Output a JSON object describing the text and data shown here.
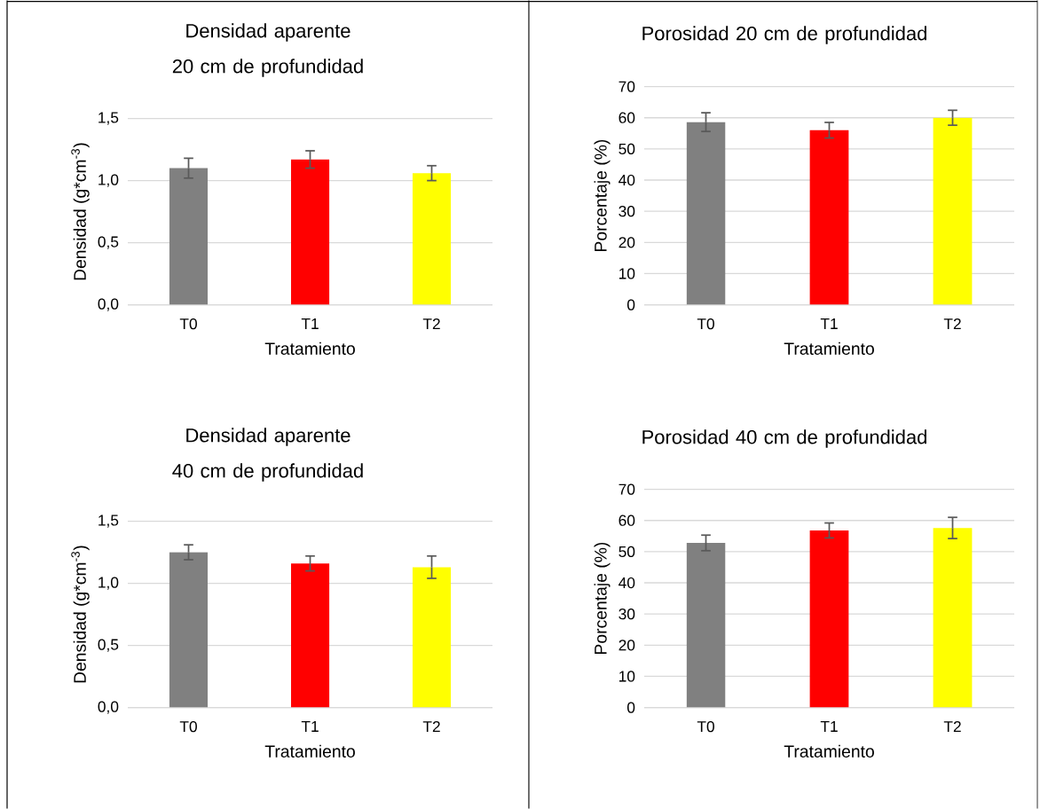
{
  "chart_data": [
    {
      "type": "bar",
      "title": "Densidad aparente 20 cm de profundidad",
      "xlabel": "Tratamiento",
      "ylabel": "Densidad (g*cm$^{-3}$)",
      "categories": [
        "T0",
        "T1",
        "T2"
      ],
      "values": [
        1.1,
        1.17,
        1.06
      ],
      "errors": [
        0.08,
        0.07,
        0.06
      ],
      "colors": [
        "#808080",
        "#ff0000",
        "#ffff00"
      ],
      "ylim": [
        0,
        1.5
      ],
      "yticks": [
        {
          "value": 0,
          "label": "0,0"
        },
        {
          "value": 0.5,
          "label": "0,5"
        },
        {
          "value": 1.0,
          "label": "1,0"
        },
        {
          "value": 1.5,
          "label": "1,5"
        }
      ],
      "grid": "y"
    },
    {
      "type": "bar",
      "title": "Porosidad 20 cm de profundidad",
      "xlabel": "Tratamiento",
      "ylabel": "Porcentaje (%)",
      "categories": [
        "T0",
        "T1",
        "T2"
      ],
      "values": [
        58.6,
        56.0,
        60.0
      ],
      "errors": [
        3.0,
        2.5,
        2.4
      ],
      "colors": [
        "#808080",
        "#ff0000",
        "#ffff00"
      ],
      "ylim": [
        0,
        70
      ],
      "yticks": [
        0,
        10,
        20,
        30,
        40,
        50,
        60,
        70
      ],
      "grid": "y"
    },
    {
      "type": "bar",
      "title": "Densidad aparente 40 cm de profundidad",
      "xlabel": "Tratamiento",
      "ylabel": "Densidad (g*cm$^{-3}$)",
      "categories": [
        "T0",
        "T1",
        "T2"
      ],
      "values": [
        1.25,
        1.16,
        1.13
      ],
      "errors": [
        0.06,
        0.06,
        0.09
      ],
      "colors": [
        "#808080",
        "#ff0000",
        "#ffff00"
      ],
      "ylim": [
        0,
        1.5
      ],
      "yticks": [
        {
          "value": 0,
          "label": "0,0"
        },
        {
          "value": 0.5,
          "label": "0,5"
        },
        {
          "value": 1.0,
          "label": "1,0"
        },
        {
          "value": 1.5,
          "label": "1,5"
        }
      ],
      "grid": "y"
    },
    {
      "type": "bar",
      "title": "Porosidad 40 cm de profundidad",
      "xlabel": "Tratamiento",
      "ylabel": "Porcentaje (%)",
      "categories": [
        "T0",
        "T1",
        "T2"
      ],
      "values": [
        52.8,
        56.8,
        57.6
      ],
      "errors": [
        2.5,
        2.4,
        3.4
      ],
      "colors": [
        "#808080",
        "#ff0000",
        "#ffff00"
      ],
      "ylim": [
        0,
        70
      ],
      "yticks": [
        0,
        10,
        20,
        30,
        40,
        50,
        60,
        70
      ],
      "grid": "y"
    }
  ]
}
